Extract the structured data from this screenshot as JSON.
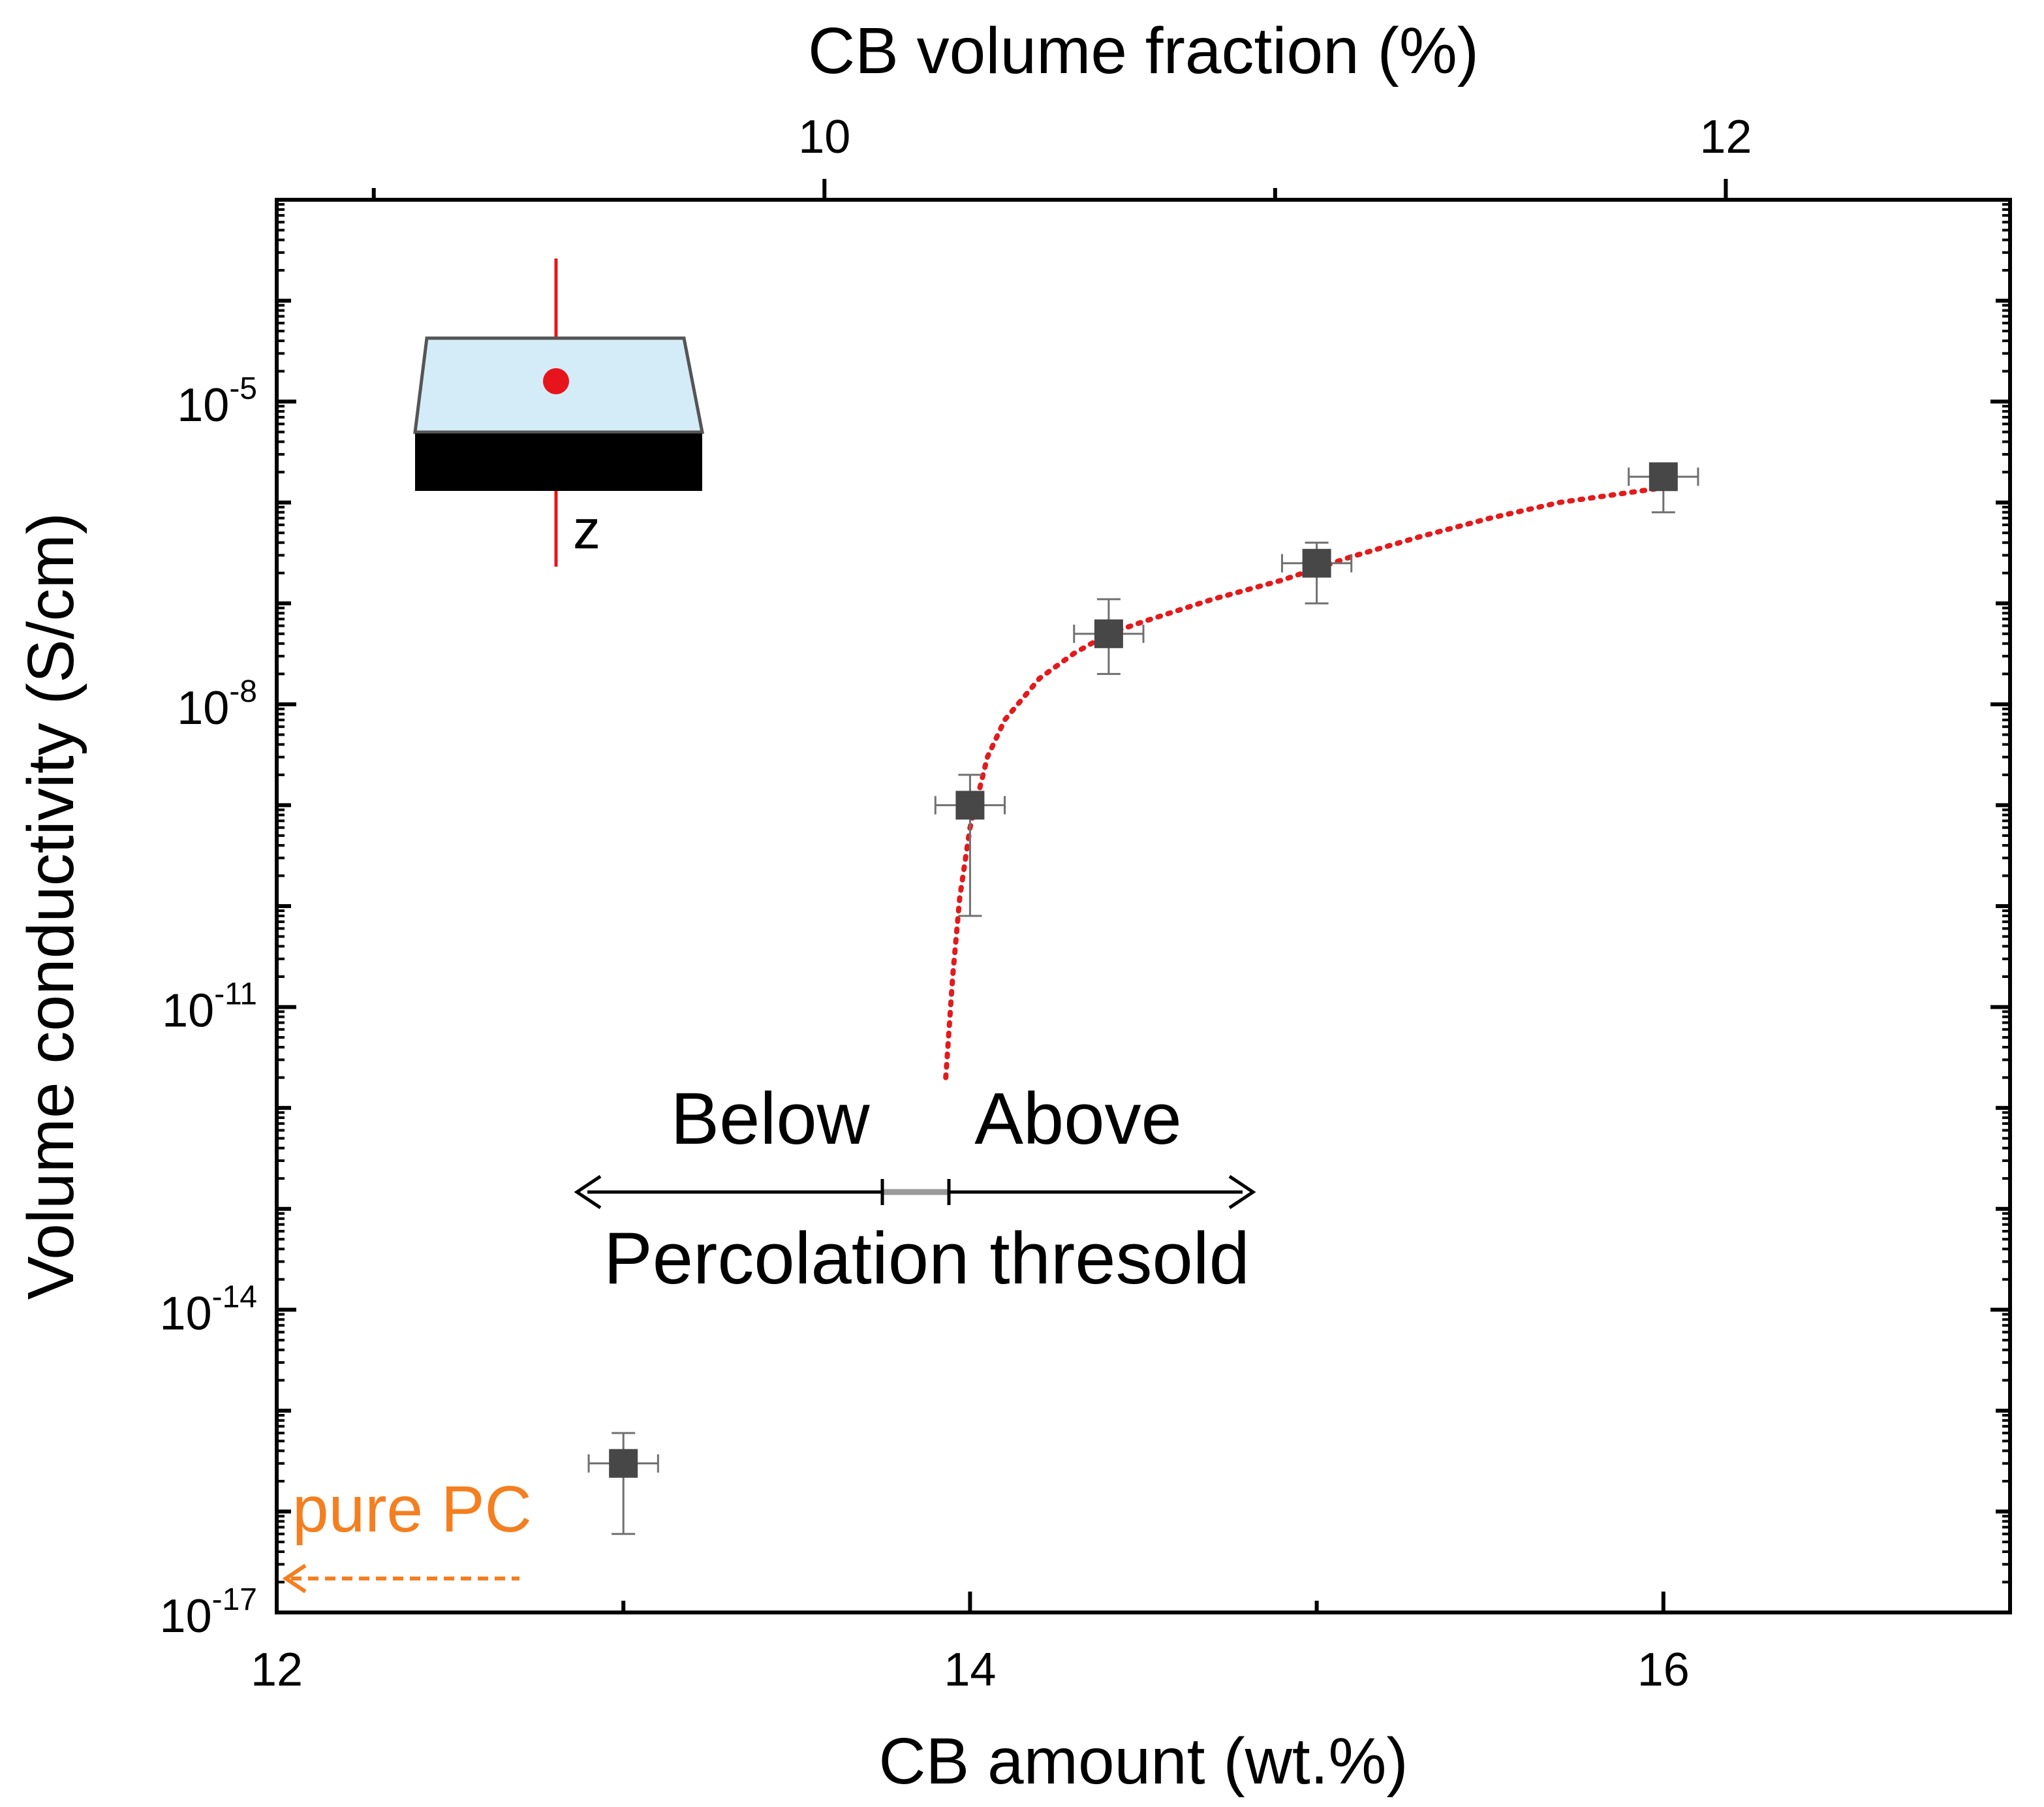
{
  "chart_data": {
    "type": "scatter",
    "title": "",
    "xlabel": "CB amount (wt.%)",
    "ylabel": "Volume conductivity (S/cm)",
    "x2label": "CB volume fraction (%)",
    "xlim": [
      12,
      17
    ],
    "ylim": [
      1e-17,
      0.001
    ],
    "yscale": "log",
    "x_ticks": [
      {
        "value": 12,
        "label": "12"
      },
      {
        "value": 14,
        "label": "14"
      },
      {
        "value": 16,
        "label": "16"
      }
    ],
    "x2_ticks": [
      {
        "value": 10,
        "label": "10"
      },
      {
        "value": 12,
        "label": "12"
      }
    ],
    "y_ticks": [
      {
        "value": 1e-17,
        "base": "10",
        "exp": "-17"
      },
      {
        "value": 1e-14,
        "base": "10",
        "exp": "-14"
      },
      {
        "value": 1e-11,
        "base": "10",
        "exp": "-11"
      },
      {
        "value": 1e-08,
        "base": "10",
        "exp": "-8"
      },
      {
        "value": 1e-05,
        "base": "10",
        "exp": "-5"
      }
    ],
    "series": [
      {
        "name": "Volume conductivity",
        "marker": "square",
        "color": "#474747",
        "points": [
          {
            "x": 13.0,
            "y": 3e-16,
            "xerr": 0.1,
            "yerr_low": 6e-17,
            "yerr_high": 6e-16
          },
          {
            "x": 14.0,
            "y": 1e-09,
            "xerr": 0.1,
            "yerr_low": 8e-11,
            "yerr_high": 2e-09
          },
          {
            "x": 14.4,
            "y": 5e-08,
            "xerr": 0.1,
            "yerr_low": 2e-08,
            "yerr_high": 1.1e-07
          },
          {
            "x": 15.0,
            "y": 2.5e-07,
            "xerr": 0.1,
            "yerr_low": 1e-07,
            "yerr_high": 4e-07
          },
          {
            "x": 16.0,
            "y": 1.8e-06,
            "xerr": 0.1,
            "yerr_low": 8e-07,
            "yerr_high": 2.4e-06
          }
        ]
      }
    ],
    "fit_line": {
      "style": "dotted",
      "color": "#e31a1c",
      "x": [
        13.93,
        13.95,
        13.97,
        14.0,
        14.05,
        14.1,
        14.2,
        14.3,
        14.4,
        14.5,
        14.7,
        14.9,
        15.1,
        15.3,
        15.5,
        15.7,
        16.0
      ],
      "y": [
        2e-12,
        2e-11,
        1.2e-10,
        6e-10,
        3e-09,
        7e-09,
        1.8e-08,
        3.2e-08,
        5e-08,
        6.6e-08,
        1.1e-07,
        1.7e-07,
        2.9e-07,
        4.6e-07,
        7e-07,
        1e-06,
        1.4e-06
      ]
    }
  },
  "annotations": {
    "below": "Below",
    "above": "Above",
    "threshold": "Percolation thresold",
    "pure_pc": "pure PC",
    "z_label": "z"
  },
  "colors": {
    "pure_pc": "#f47f20",
    "fit": "#e31a1c",
    "inset_top": "#d4ecf8",
    "inset_bottom": "#000000"
  }
}
